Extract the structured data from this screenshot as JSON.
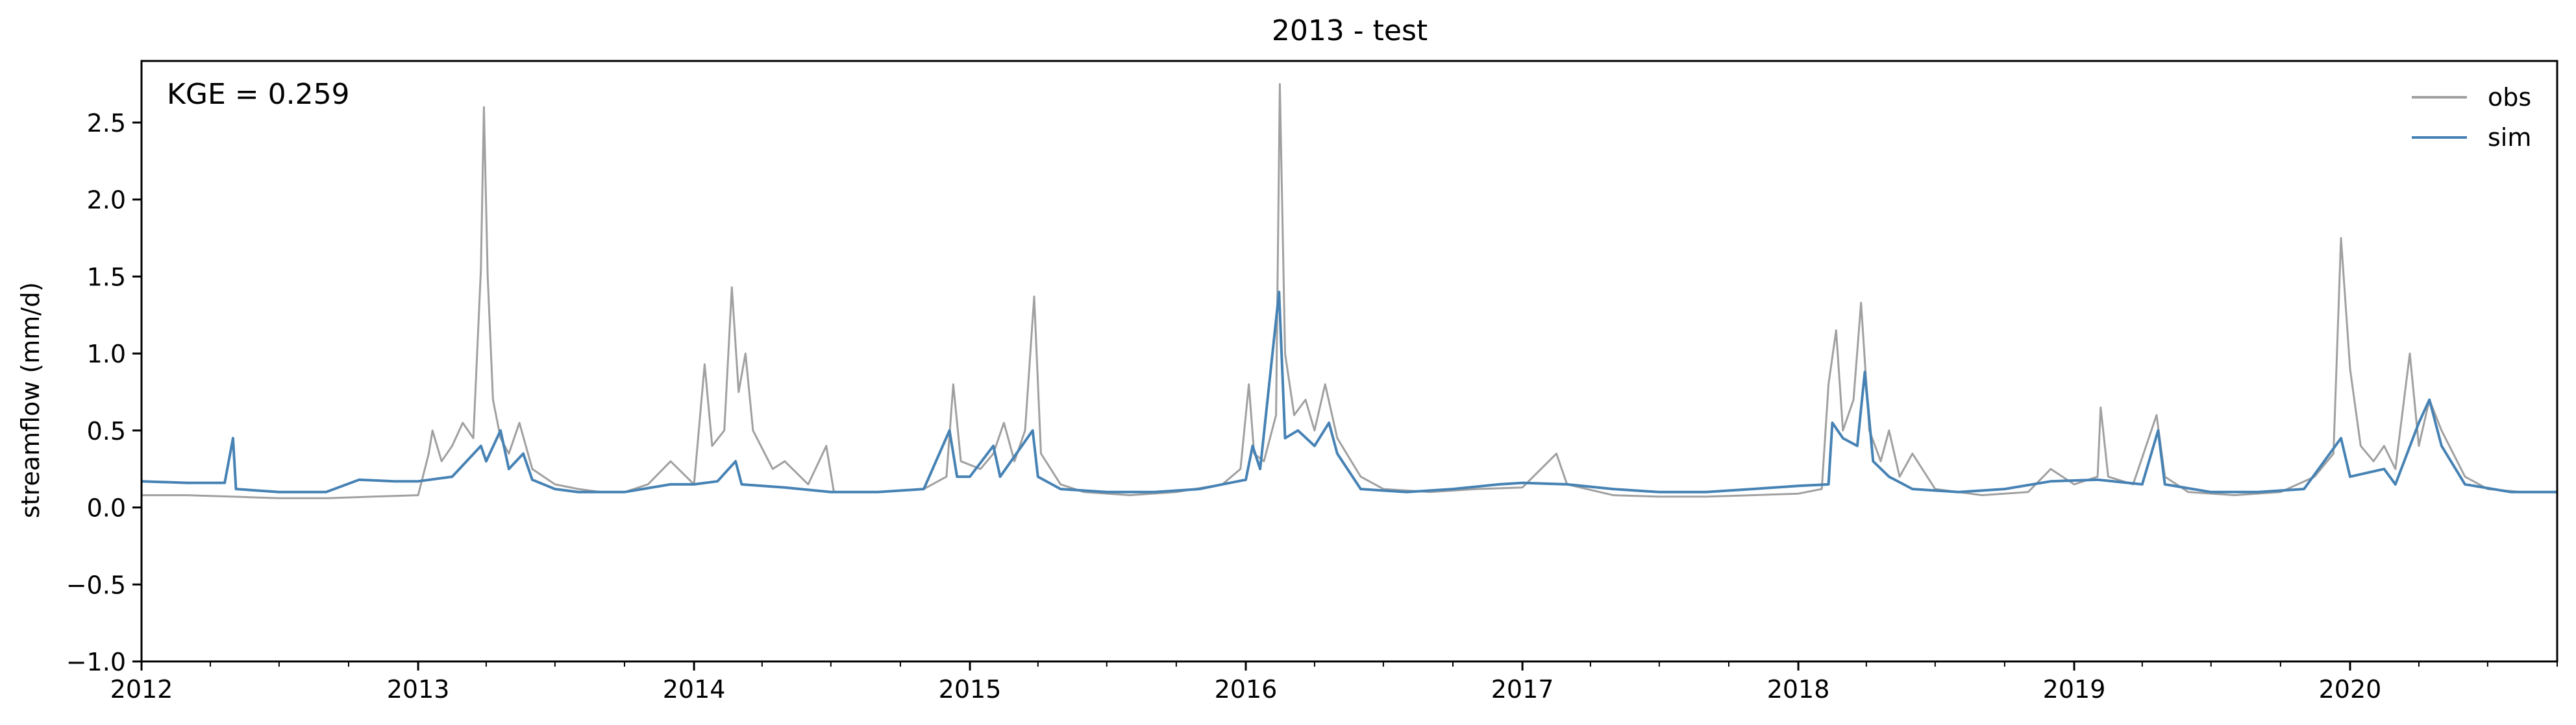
{
  "chart_data": {
    "type": "line",
    "title": "2013 - test",
    "xlabel": "",
    "ylabel": "streamflow (mm/d)",
    "annotation": "KGE = 0.259",
    "xlim": [
      "2012-01-01",
      "2020-10-01"
    ],
    "ylim": [
      -1.0,
      2.9
    ],
    "x_ticks": [
      "2012",
      "2013",
      "2014",
      "2015",
      "2016",
      "2017",
      "2018",
      "2019",
      "2020"
    ],
    "y_ticks": [
      "−1.0",
      "−0.5",
      "0.0",
      "0.5",
      "1.0",
      "1.5",
      "2.0",
      "2.5"
    ],
    "y_tick_values": [
      -1.0,
      -0.5,
      0.0,
      0.5,
      1.0,
      1.5,
      2.0,
      2.5
    ],
    "grid": false,
    "legend": "top-right",
    "series": [
      {
        "name": "obs",
        "color": "#a0a0a0",
        "points": [
          [
            "2012-01-01",
            0.08
          ],
          [
            "2012-03-01",
            0.08
          ],
          [
            "2012-05-01",
            0.07
          ],
          [
            "2012-07-01",
            0.06
          ],
          [
            "2012-09-01",
            0.06
          ],
          [
            "2012-11-01",
            0.07
          ],
          [
            "2013-01-01",
            0.08
          ],
          [
            "2013-01-15",
            0.35
          ],
          [
            "2013-01-20",
            0.5
          ],
          [
            "2013-02-01",
            0.3
          ],
          [
            "2013-02-15",
            0.4
          ],
          [
            "2013-03-01",
            0.55
          ],
          [
            "2013-03-15",
            0.45
          ],
          [
            "2013-03-25",
            1.55
          ],
          [
            "2013-03-29",
            2.6
          ],
          [
            "2013-04-03",
            1.5
          ],
          [
            "2013-04-10",
            0.7
          ],
          [
            "2013-04-20",
            0.45
          ],
          [
            "2013-05-01",
            0.35
          ],
          [
            "2013-05-15",
            0.55
          ],
          [
            "2013-06-01",
            0.25
          ],
          [
            "2013-07-01",
            0.15
          ],
          [
            "2013-08-01",
            0.12
          ],
          [
            "2013-09-01",
            0.1
          ],
          [
            "2013-10-01",
            0.1
          ],
          [
            "2013-11-01",
            0.15
          ],
          [
            "2013-12-01",
            0.3
          ],
          [
            "2014-01-01",
            0.15
          ],
          [
            "2014-01-15",
            0.93
          ],
          [
            "2014-01-25",
            0.4
          ],
          [
            "2014-02-10",
            0.5
          ],
          [
            "2014-02-20",
            1.43
          ],
          [
            "2014-03-01",
            0.75
          ],
          [
            "2014-03-10",
            1.0
          ],
          [
            "2014-03-20",
            0.5
          ],
          [
            "2014-04-15",
            0.25
          ],
          [
            "2014-05-01",
            0.3
          ],
          [
            "2014-06-01",
            0.15
          ],
          [
            "2014-06-25",
            0.4
          ],
          [
            "2014-07-05",
            0.1
          ],
          [
            "2014-09-01",
            0.1
          ],
          [
            "2014-11-01",
            0.12
          ],
          [
            "2014-12-01",
            0.2
          ],
          [
            "2014-12-10",
            0.8
          ],
          [
            "2014-12-20",
            0.3
          ],
          [
            "2015-01-15",
            0.25
          ],
          [
            "2015-02-01",
            0.35
          ],
          [
            "2015-02-15",
            0.55
          ],
          [
            "2015-03-01",
            0.3
          ],
          [
            "2015-03-15",
            0.5
          ],
          [
            "2015-03-27",
            1.37
          ],
          [
            "2015-04-05",
            0.35
          ],
          [
            "2015-05-01",
            0.15
          ],
          [
            "2015-06-01",
            0.1
          ],
          [
            "2015-08-01",
            0.08
          ],
          [
            "2015-10-01",
            0.1
          ],
          [
            "2015-12-01",
            0.15
          ],
          [
            "2015-12-25",
            0.25
          ],
          [
            "2016-01-05",
            0.8
          ],
          [
            "2016-01-12",
            0.35
          ],
          [
            "2016-01-25",
            0.3
          ],
          [
            "2016-02-10",
            0.6
          ],
          [
            "2016-02-15",
            2.75
          ],
          [
            "2016-02-22",
            1.0
          ],
          [
            "2016-03-05",
            0.6
          ],
          [
            "2016-03-20",
            0.7
          ],
          [
            "2016-04-01",
            0.5
          ],
          [
            "2016-04-15",
            0.8
          ],
          [
            "2016-05-01",
            0.45
          ],
          [
            "2016-06-01",
            0.2
          ],
          [
            "2016-07-01",
            0.12
          ],
          [
            "2016-09-01",
            0.1
          ],
          [
            "2016-11-01",
            0.12
          ],
          [
            "2017-01-01",
            0.13
          ],
          [
            "2017-02-15",
            0.35
          ],
          [
            "2017-03-01",
            0.15
          ],
          [
            "2017-05-01",
            0.08
          ],
          [
            "2017-07-01",
            0.07
          ],
          [
            "2017-09-01",
            0.07
          ],
          [
            "2017-11-01",
            0.08
          ],
          [
            "2018-01-01",
            0.09
          ],
          [
            "2018-02-01",
            0.12
          ],
          [
            "2018-02-10",
            0.8
          ],
          [
            "2018-02-20",
            1.15
          ],
          [
            "2018-03-01",
            0.5
          ],
          [
            "2018-03-15",
            0.7
          ],
          [
            "2018-03-25",
            1.33
          ],
          [
            "2018-04-05",
            0.5
          ],
          [
            "2018-04-20",
            0.3
          ],
          [
            "2018-05-01",
            0.5
          ],
          [
            "2018-05-15",
            0.2
          ],
          [
            "2018-06-01",
            0.35
          ],
          [
            "2018-07-01",
            0.12
          ],
          [
            "2018-09-01",
            0.08
          ],
          [
            "2018-11-01",
            0.1
          ],
          [
            "2018-12-01",
            0.25
          ],
          [
            "2019-01-01",
            0.15
          ],
          [
            "2019-02-01",
            0.2
          ],
          [
            "2019-02-05",
            0.65
          ],
          [
            "2019-02-15",
            0.2
          ],
          [
            "2019-03-20",
            0.15
          ],
          [
            "2019-04-20",
            0.6
          ],
          [
            "2019-05-01",
            0.2
          ],
          [
            "2019-06-01",
            0.1
          ],
          [
            "2019-08-01",
            0.08
          ],
          [
            "2019-10-01",
            0.1
          ],
          [
            "2019-11-15",
            0.2
          ],
          [
            "2019-12-10",
            0.35
          ],
          [
            "2019-12-20",
            1.75
          ],
          [
            "2020-01-01",
            0.9
          ],
          [
            "2020-01-15",
            0.4
          ],
          [
            "2020-02-01",
            0.3
          ],
          [
            "2020-02-15",
            0.4
          ],
          [
            "2020-03-01",
            0.25
          ],
          [
            "2020-03-20",
            1.0
          ],
          [
            "2020-04-01",
            0.4
          ],
          [
            "2020-04-15",
            0.7
          ],
          [
            "2020-05-01",
            0.5
          ],
          [
            "2020-06-01",
            0.2
          ],
          [
            "2020-07-01",
            0.12
          ],
          [
            "2020-08-15",
            0.1
          ],
          [
            "2020-10-01",
            0.1
          ]
        ]
      },
      {
        "name": "sim",
        "color": "#4682b4",
        "points": [
          [
            "2012-01-01",
            0.17
          ],
          [
            "2012-03-01",
            0.16
          ],
          [
            "2012-04-20",
            0.16
          ],
          [
            "2012-05-01",
            0.45
          ],
          [
            "2012-05-05",
            0.12
          ],
          [
            "2012-07-01",
            0.1
          ],
          [
            "2012-09-01",
            0.1
          ],
          [
            "2012-10-15",
            0.18
          ],
          [
            "2012-12-01",
            0.17
          ],
          [
            "2013-01-01",
            0.17
          ],
          [
            "2013-02-15",
            0.2
          ],
          [
            "2013-03-25",
            0.4
          ],
          [
            "2013-04-01",
            0.3
          ],
          [
            "2013-04-20",
            0.5
          ],
          [
            "2013-05-01",
            0.25
          ],
          [
            "2013-05-20",
            0.35
          ],
          [
            "2013-06-01",
            0.18
          ],
          [
            "2013-07-01",
            0.12
          ],
          [
            "2013-08-01",
            0.1
          ],
          [
            "2013-10-01",
            0.1
          ],
          [
            "2013-12-01",
            0.15
          ],
          [
            "2014-01-01",
            0.15
          ],
          [
            "2014-02-01",
            0.17
          ],
          [
            "2014-02-25",
            0.3
          ],
          [
            "2014-03-05",
            0.15
          ],
          [
            "2014-05-01",
            0.13
          ],
          [
            "2014-07-01",
            0.1
          ],
          [
            "2014-09-01",
            0.1
          ],
          [
            "2014-11-01",
            0.12
          ],
          [
            "2014-12-05",
            0.5
          ],
          [
            "2014-12-15",
            0.2
          ],
          [
            "2015-01-01",
            0.2
          ],
          [
            "2015-02-01",
            0.4
          ],
          [
            "2015-02-10",
            0.2
          ],
          [
            "2015-03-25",
            0.5
          ],
          [
            "2015-04-01",
            0.2
          ],
          [
            "2015-05-01",
            0.12
          ],
          [
            "2015-07-01",
            0.1
          ],
          [
            "2015-09-01",
            0.1
          ],
          [
            "2015-11-01",
            0.12
          ],
          [
            "2015-12-01",
            0.15
          ],
          [
            "2016-01-01",
            0.18
          ],
          [
            "2016-01-10",
            0.4
          ],
          [
            "2016-01-20",
            0.25
          ],
          [
            "2016-02-14",
            1.4
          ],
          [
            "2016-02-22",
            0.45
          ],
          [
            "2016-03-10",
            0.5
          ],
          [
            "2016-04-01",
            0.4
          ],
          [
            "2016-04-20",
            0.55
          ],
          [
            "2016-05-01",
            0.35
          ],
          [
            "2016-06-01",
            0.12
          ],
          [
            "2016-08-01",
            0.1
          ],
          [
            "2016-10-01",
            0.12
          ],
          [
            "2016-12-01",
            0.15
          ],
          [
            "2017-01-01",
            0.16
          ],
          [
            "2017-03-01",
            0.15
          ],
          [
            "2017-05-01",
            0.12
          ],
          [
            "2017-07-01",
            0.1
          ],
          [
            "2017-09-01",
            0.1
          ],
          [
            "2017-11-01",
            0.12
          ],
          [
            "2018-01-01",
            0.14
          ],
          [
            "2018-02-10",
            0.15
          ],
          [
            "2018-02-15",
            0.55
          ],
          [
            "2018-03-01",
            0.45
          ],
          [
            "2018-03-20",
            0.4
          ],
          [
            "2018-03-30",
            0.88
          ],
          [
            "2018-04-10",
            0.3
          ],
          [
            "2018-05-01",
            0.2
          ],
          [
            "2018-06-01",
            0.12
          ],
          [
            "2018-08-01",
            0.1
          ],
          [
            "2018-10-01",
            0.12
          ],
          [
            "2018-12-01",
            0.17
          ],
          [
            "2019-02-01",
            0.18
          ],
          [
            "2019-04-01",
            0.15
          ],
          [
            "2019-04-22",
            0.5
          ],
          [
            "2019-05-01",
            0.15
          ],
          [
            "2019-07-01",
            0.1
          ],
          [
            "2019-09-01",
            0.1
          ],
          [
            "2019-11-01",
            0.12
          ],
          [
            "2019-12-20",
            0.45
          ],
          [
            "2020-01-01",
            0.2
          ],
          [
            "2020-02-15",
            0.25
          ],
          [
            "2020-03-01",
            0.15
          ],
          [
            "2020-04-01",
            0.55
          ],
          [
            "2020-04-15",
            0.7
          ],
          [
            "2020-05-01",
            0.4
          ],
          [
            "2020-06-01",
            0.15
          ],
          [
            "2020-08-01",
            0.1
          ],
          [
            "2020-10-01",
            0.1
          ]
        ]
      }
    ]
  }
}
